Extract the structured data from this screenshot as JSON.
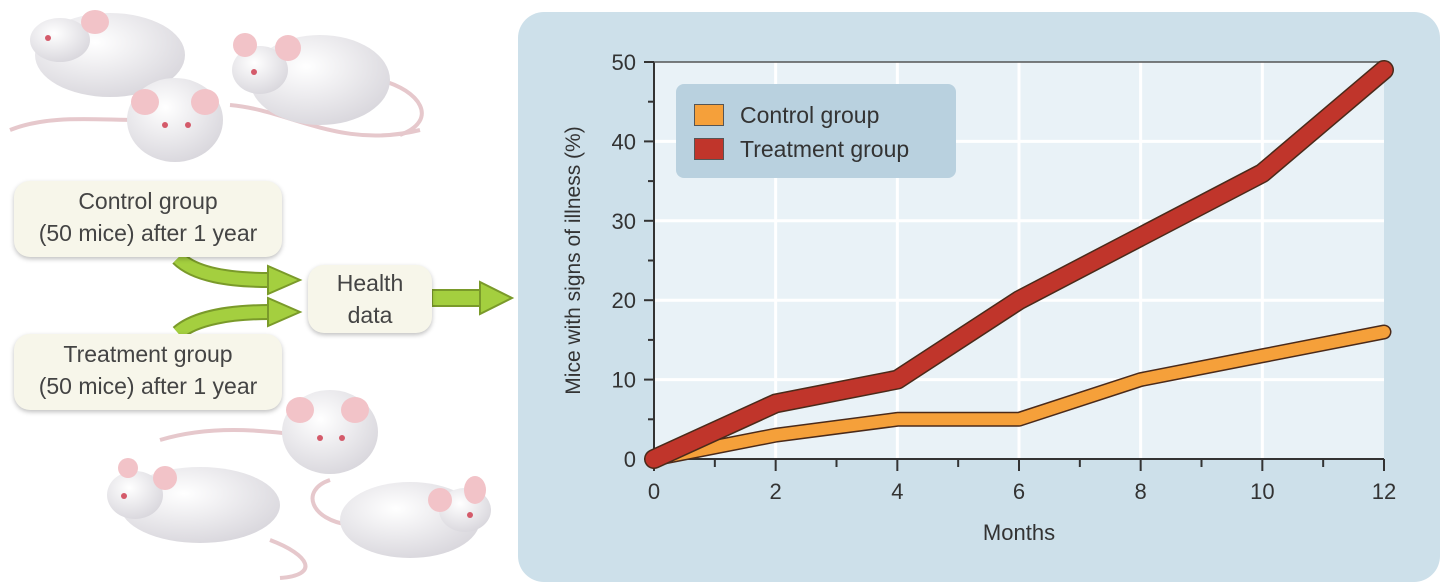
{
  "flow": {
    "control_box": {
      "line1": "Control group",
      "line2": "(50 mice) after 1 year"
    },
    "treatment_box": {
      "line1": "Treatment group",
      "line2": "(50 mice) after 1 year"
    },
    "health_box": {
      "line1": "Health",
      "line2": "data"
    }
  },
  "colors": {
    "panel_bg": "#cde0ea",
    "plot_bg": "#e9f2f7",
    "control": "#f5a03a",
    "treatment": "#c0352b",
    "arrow": "#a4cf3f"
  },
  "chart_data": {
    "type": "line",
    "xlabel": "Months",
    "ylabel": "Mice with signs of illness (%)",
    "xlim": [
      0,
      12
    ],
    "ylim": [
      0,
      50
    ],
    "x_ticks": [
      0,
      2,
      4,
      6,
      8,
      10,
      12
    ],
    "y_ticks": [
      0,
      10,
      20,
      30,
      40,
      50
    ],
    "grid": true,
    "legend_position": "top-left",
    "series": [
      {
        "name": "Control group",
        "color": "#f5a03a",
        "x": [
          0,
          2,
          4,
          6,
          8,
          10,
          12
        ],
        "y": [
          0,
          3,
          5,
          5,
          10,
          13,
          16
        ]
      },
      {
        "name": "Treatment group",
        "color": "#c0352b",
        "x": [
          0,
          2,
          4,
          6,
          8,
          10,
          12
        ],
        "y": [
          0,
          7,
          10,
          20,
          28,
          36,
          49
        ]
      }
    ]
  }
}
